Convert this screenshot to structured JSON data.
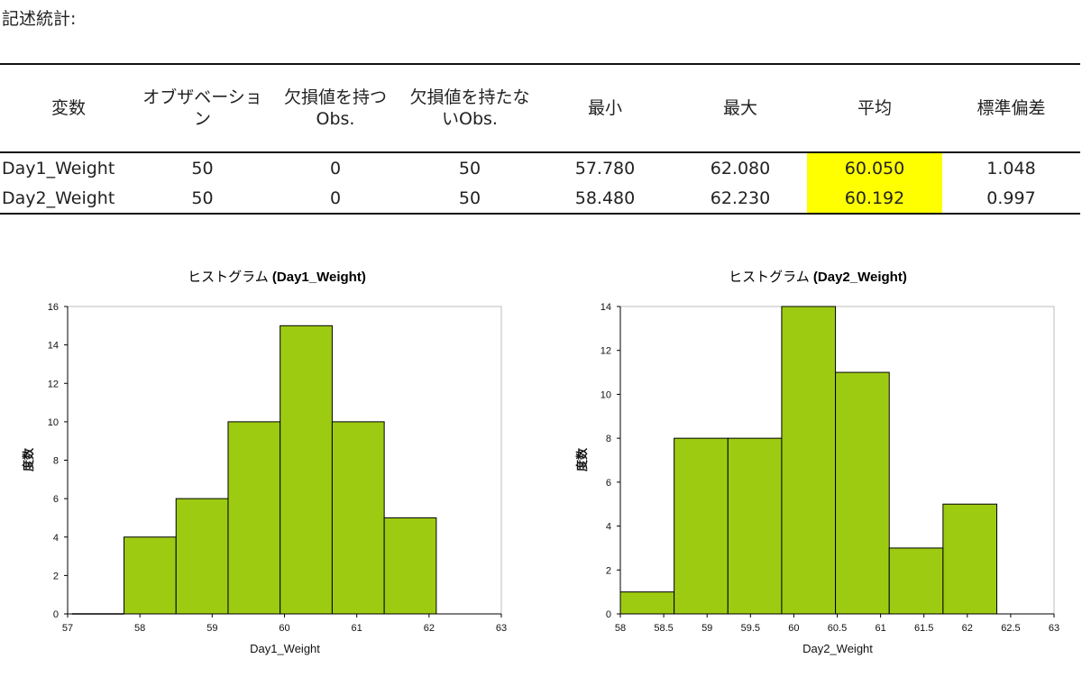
{
  "section_title": "記述統計:",
  "table": {
    "headers": [
      "変数",
      "オブザベーション",
      "欠損値を持つObs.",
      "欠損値を持たないObs.",
      "最小",
      "最大",
      "平均",
      "標準偏差"
    ],
    "rows": [
      [
        "Day1_Weight",
        "50",
        "0",
        "50",
        "57.780",
        "62.080",
        "60.050",
        "1.048"
      ],
      [
        "Day2_Weight",
        "50",
        "0",
        "50",
        "58.480",
        "62.230",
        "60.192",
        "0.997"
      ]
    ],
    "highlight_color": "#ffff00"
  },
  "chart_data": [
    {
      "type": "bar",
      "title_prefix": "ヒストグラム",
      "title_var": "(Day1_Weight)",
      "xlabel": "Day1_Weight",
      "ylabel": "度数",
      "xlim": [
        57,
        63
      ],
      "ylim": [
        0,
        16
      ],
      "xticks": [
        "57",
        "58",
        "59",
        "60",
        "61",
        "62",
        "63"
      ],
      "yticks": [
        "0",
        "2",
        "4",
        "6",
        "8",
        "10",
        "12",
        "14",
        "16"
      ],
      "bins": [
        {
          "start": 57.06,
          "end": 57.78,
          "count": 0
        },
        {
          "start": 57.78,
          "end": 58.5,
          "count": 4
        },
        {
          "start": 58.5,
          "end": 59.22,
          "count": 6
        },
        {
          "start": 59.22,
          "end": 59.94,
          "count": 10
        },
        {
          "start": 59.94,
          "end": 60.66,
          "count": 15
        },
        {
          "start": 60.66,
          "end": 61.38,
          "count": 10
        },
        {
          "start": 61.38,
          "end": 62.1,
          "count": 5
        }
      ],
      "bar_color": "#9dcb12",
      "grid": false
    },
    {
      "type": "bar",
      "title_prefix": "ヒストグラム",
      "title_var": "(Day2_Weight)",
      "xlabel": "Day2_Weight",
      "ylabel": "度数",
      "xlim": [
        58,
        63
      ],
      "ylim": [
        0,
        14
      ],
      "xticks": [
        "58",
        "58.5",
        "59",
        "59.5",
        "60",
        "60.5",
        "61",
        "61.5",
        "62",
        "62.5",
        "63"
      ],
      "yticks": [
        "0",
        "2",
        "4",
        "6",
        "8",
        "10",
        "12",
        "14"
      ],
      "bins": [
        {
          "start": 58.0,
          "end": 58.62,
          "count": 1
        },
        {
          "start": 58.62,
          "end": 59.24,
          "count": 8
        },
        {
          "start": 59.24,
          "end": 59.86,
          "count": 8
        },
        {
          "start": 59.86,
          "end": 60.48,
          "count": 14
        },
        {
          "start": 60.48,
          "end": 61.1,
          "count": 11
        },
        {
          "start": 61.1,
          "end": 61.72,
          "count": 3
        },
        {
          "start": 61.72,
          "end": 62.34,
          "count": 5
        }
      ],
      "bar_color": "#9dcb12",
      "grid": false
    }
  ]
}
